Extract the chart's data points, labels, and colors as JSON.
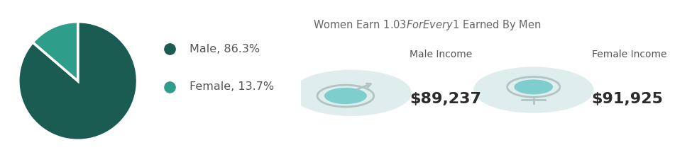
{
  "pie_values": [
    86.3,
    13.7
  ],
  "pie_colors": [
    "#1a5c52",
    "#2e9d8a"
  ],
  "pie_labels": [
    "Male, 86.3%",
    "Female, 13.7%"
  ],
  "legend_colors": [
    "#1a5c52",
    "#2e9d8a"
  ],
  "title": "Women Earn $1.03 For Every $1 Earned By Men",
  "male_label": "Male Income",
  "female_label": "Female Income",
  "male_value": "$89,237",
  "female_value": "$91,925",
  "bg_color": "#ffffff",
  "panel_color": "#edf1f7",
  "circle_bg": "#e0eded",
  "text_color": "#555555",
  "value_color": "#2b2b2b",
  "title_color": "#666666",
  "icon_fill": "#7ecece",
  "icon_outline": "#b0c4c4",
  "icon_arrow": "#b0c4c4"
}
